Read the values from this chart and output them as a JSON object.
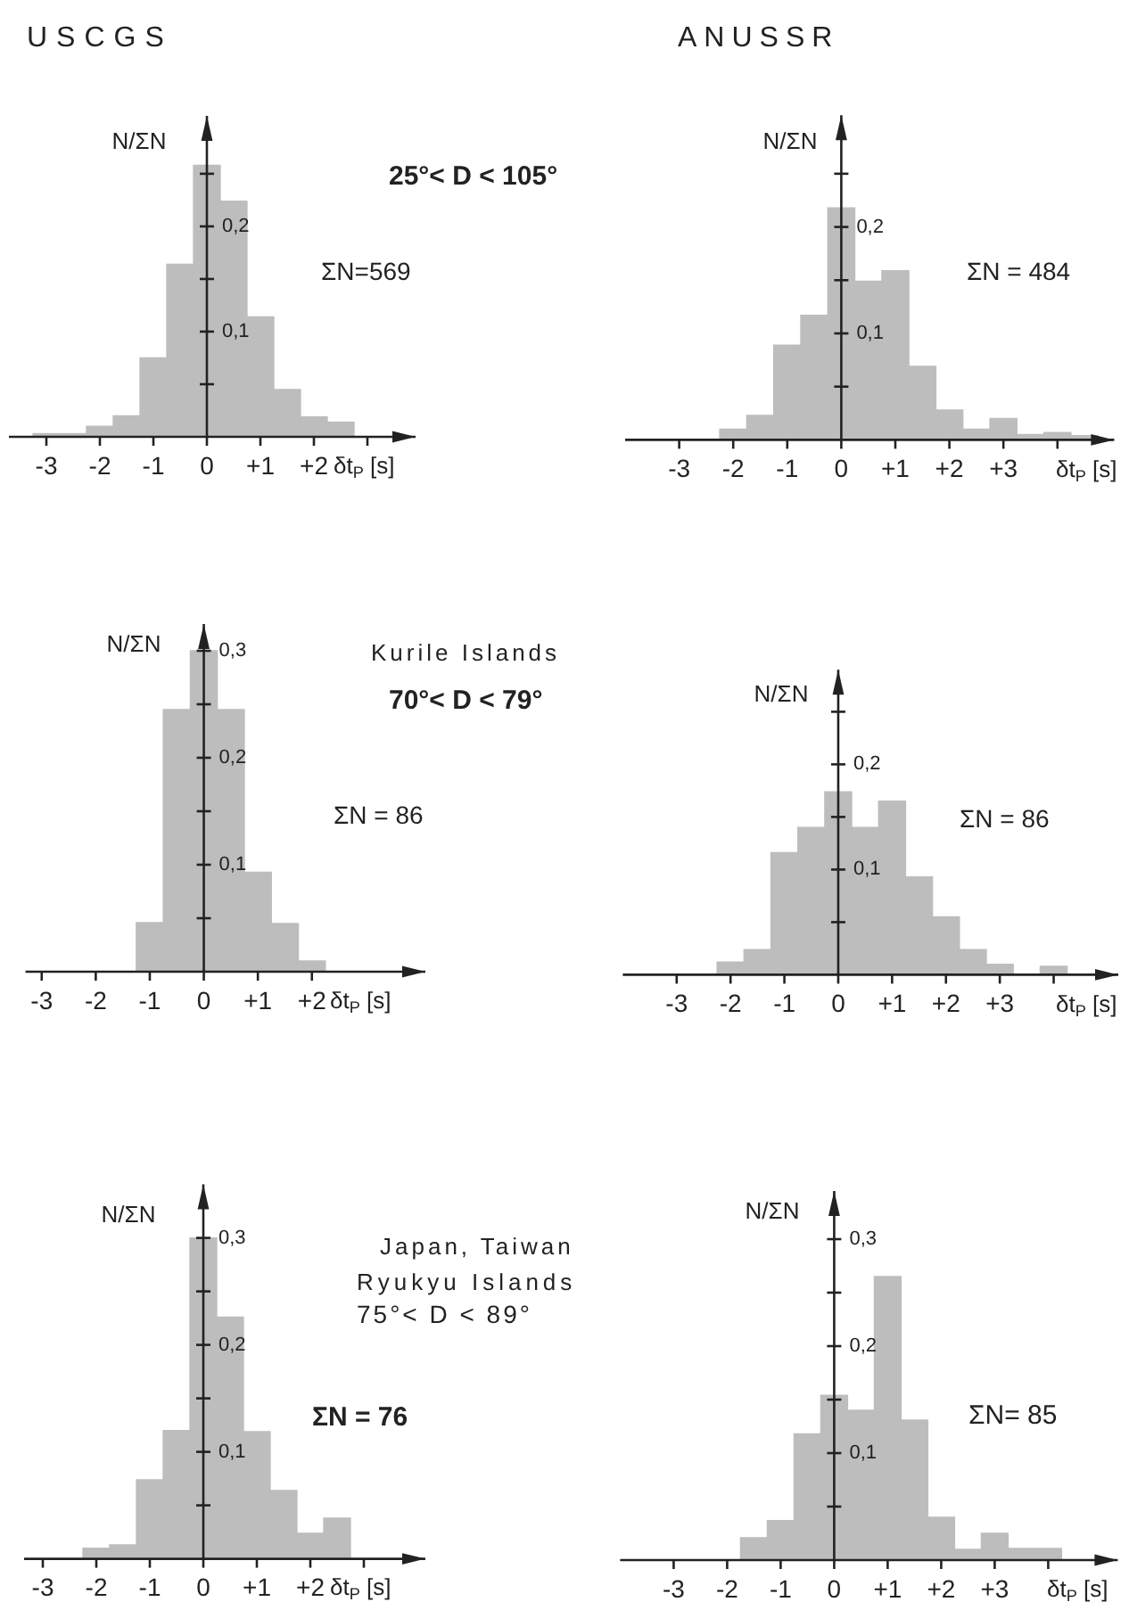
{
  "chart_data": [
    {
      "type": "histogram",
      "title": "USCGS",
      "xlabel": "δt$_{P}$ [s]",
      "ylabel": "N/ΣN",
      "annotations": [
        "25°< D < 105°",
        "ΣN=569"
      ],
      "bins": [
        -3.25,
        -2.75,
        -2.25,
        -1.75,
        -1.25,
        -0.75,
        -0.25,
        0.25,
        0.75,
        1.25,
        1.75,
        2.25,
        2.75
      ],
      "values": [
        0.003,
        0.003,
        0.01,
        0.02,
        0.075,
        0.164,
        0.258,
        0.224,
        0.114,
        0.045,
        0.019,
        0.014
      ],
      "color": "#bdbdbd",
      "xlim": [
        -3.7,
        3.9
      ],
      "ylim": [
        0,
        0.305
      ],
      "xticks": [
        -3,
        -2,
        -1,
        0,
        {
          "value": 1,
          "label": "+1"
        },
        {
          "value": 2,
          "label": "+2"
        },
        {
          "value": 3,
          "label": null
        }
      ],
      "yticks": [
        {
          "value": 0.05,
          "label": null
        },
        {
          "value": 0.1,
          "label": "0,1"
        },
        {
          "value": 0.15,
          "label": null
        },
        {
          "value": 0.2,
          "label": "0,2"
        },
        {
          "value": 0.25,
          "label": null
        }
      ]
    },
    {
      "type": "histogram",
      "title": "ANUSSR",
      "xlabel": "δt$_{P}$ [s]",
      "ylabel": "N/ΣN",
      "annotations": [
        "ΣN = 484"
      ],
      "bins": [
        -2.25,
        -1.75,
        -1.25,
        -0.75,
        -0.25,
        0.25,
        0.75,
        1.25,
        1.75,
        2.25,
        2.75,
        3.25,
        3.75,
        4.25,
        4.75
      ],
      "values": [
        0.01,
        0.023,
        0.089,
        0.117,
        0.218,
        0.149,
        0.159,
        0.069,
        0.028,
        0.01,
        0.02,
        0.005,
        0.007,
        0.004
      ],
      "color": "#bdbdbd",
      "xlim": [
        -4,
        5.05
      ],
      "ylim": [
        0,
        0.305
      ],
      "xticks": [
        -3,
        -2,
        -1,
        0,
        {
          "value": 1,
          "label": "+1"
        },
        {
          "value": 2,
          "label": "+2"
        },
        {
          "value": 3,
          "label": "+3"
        },
        {
          "value": 4,
          "label": null
        }
      ],
      "yticks": [
        {
          "value": 0.05,
          "label": null
        },
        {
          "value": 0.1,
          "label": "0,1"
        },
        {
          "value": 0.15,
          "label": null
        },
        {
          "value": 0.2,
          "label": "0,2"
        },
        {
          "value": 0.25,
          "label": null
        }
      ]
    },
    {
      "type": "histogram",
      "xlabel": "δt$_{P}$ [s]",
      "ylabel": "N/ΣN",
      "annotations": [
        "Kurile Islands",
        "70°< D < 79°",
        "ΣN = 86"
      ],
      "bins": [
        -1.25,
        -0.75,
        -0.25,
        0.25,
        0.75,
        1.25,
        1.75,
        2.25
      ],
      "values": [
        0.046,
        0.245,
        0.3,
        0.245,
        0.093,
        0.045,
        0.01
      ],
      "color": "#bdbdbd",
      "xlim": [
        -3.3,
        4.1
      ],
      "ylim": [
        0,
        0.325
      ],
      "xticks": [
        -3,
        -2,
        -1,
        0,
        {
          "value": 1,
          "label": "+1"
        },
        {
          "value": 2,
          "label": "+2"
        }
      ],
      "yticks": [
        {
          "value": 0.05,
          "label": null
        },
        {
          "value": 0.1,
          "label": "0,1"
        },
        {
          "value": 0.15,
          "label": null
        },
        {
          "value": 0.2,
          "label": "0,2"
        },
        {
          "value": 0.25,
          "label": null
        },
        {
          "value": 0.3,
          "label": "0,3"
        }
      ]
    },
    {
      "type": "histogram",
      "xlabel": "δt$_{P}$ [s]",
      "ylabel": "N/ΣN",
      "annotations": [
        "ΣN = 86"
      ],
      "bins": [
        -2.25,
        -1.75,
        -1.25,
        -0.75,
        -0.25,
        0.25,
        0.75,
        1.25,
        1.75,
        2.25,
        2.75,
        3.25,
        3.75,
        4.25
      ],
      "values": [
        0.012,
        0.024,
        0.116,
        0.14,
        0.174,
        0.14,
        0.165,
        0.093,
        0.055,
        0.024,
        0.01,
        0,
        0.008
      ],
      "color": "#bdbdbd",
      "xlim": [
        -4,
        5.2
      ],
      "ylim": [
        0,
        0.29
      ],
      "xticks": [
        -3,
        -2,
        -1,
        0,
        {
          "value": 1,
          "label": "+1"
        },
        {
          "value": 2,
          "label": "+2"
        },
        {
          "value": 3,
          "label": "+3"
        },
        {
          "value": 4,
          "label": null
        }
      ],
      "yticks": [
        {
          "value": 0.05,
          "label": null
        },
        {
          "value": 0.1,
          "label": "0,1"
        },
        {
          "value": 0.15,
          "label": null
        },
        {
          "value": 0.2,
          "label": "0,2"
        },
        {
          "value": 0.25,
          "label": null
        }
      ]
    },
    {
      "type": "histogram",
      "xlabel": "δt$_{P}$ [s]",
      "ylabel": "N/ΣN",
      "annotations": [
        "Japan, Taiwan",
        "Ryukyu Islands",
        "75°< D < 89°",
        "ΣN = 76"
      ],
      "bins": [
        -2.25,
        -1.75,
        -1.25,
        -0.75,
        -0.25,
        0.25,
        0.75,
        1.25,
        1.75,
        2.25,
        2.75
      ],
      "values": [
        0.01,
        0.013,
        0.074,
        0.12,
        0.3,
        0.226,
        0.119,
        0.064,
        0.024,
        0.038
      ],
      "color": "#bdbdbd",
      "xlim": [
        -3.35,
        4.15
      ],
      "ylim": [
        0,
        0.35
      ],
      "xticks": [
        -3,
        -2,
        -1,
        0,
        {
          "value": 1,
          "label": "+1"
        },
        {
          "value": 2,
          "label": "+2"
        },
        {
          "value": 3,
          "label": null
        }
      ],
      "yticks": [
        {
          "value": 0.05,
          "label": null
        },
        {
          "value": 0.1,
          "label": "0,1"
        },
        {
          "value": 0.15,
          "label": null
        },
        {
          "value": 0.2,
          "label": "0,2"
        },
        {
          "value": 0.25,
          "label": null
        },
        {
          "value": 0.3,
          "label": "0,3"
        }
      ]
    },
    {
      "type": "histogram",
      "xlabel": "δt$_{P}$ [s]",
      "ylabel": "N/ΣN",
      "annotations": [
        "ΣN= 85"
      ],
      "bins": [
        -1.75,
        -1.25,
        -0.75,
        -0.25,
        0.25,
        0.75,
        1.25,
        1.75,
        2.25,
        2.75,
        3.25,
        3.75,
        4.25
      ],
      "values": [
        0.021,
        0.037,
        0.118,
        0.154,
        0.14,
        0.265,
        0.131,
        0.04,
        0.01,
        0.025,
        0.011,
        0.011
      ],
      "color": "#bdbdbd",
      "xlim": [
        -4,
        5.3
      ],
      "ylim": [
        0,
        0.345
      ],
      "xticks": [
        -3,
        -2,
        -1,
        0,
        {
          "value": 1,
          "label": "+1"
        },
        {
          "value": 2,
          "label": "+2"
        },
        {
          "value": 3,
          "label": "+3"
        },
        {
          "value": 4,
          "label": null
        }
      ],
      "yticks": [
        {
          "value": 0.05,
          "label": null
        },
        {
          "value": 0.1,
          "label": "0,1"
        },
        {
          "value": 0.15,
          "label": null
        },
        {
          "value": 0.2,
          "label": "0,2"
        },
        {
          "value": 0.25,
          "label": null
        },
        {
          "value": 0.3,
          "label": "0,3"
        }
      ]
    }
  ]
}
